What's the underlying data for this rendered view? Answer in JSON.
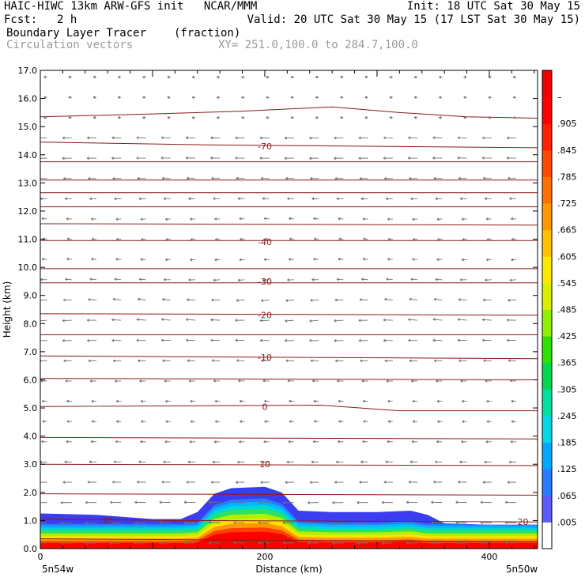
{
  "header": {
    "line1_left": "HAIC-HIWC 13km ARW-GFS init   NCAR/MMM",
    "line1_right": "Init: 18 UTC Sat 30 May 15",
    "fcst_label": "Fcst:",
    "fcst_value": "2 h",
    "line2_right": "Valid: 20 UTC Sat 30 May 15 (17 LST Sat 30 May 15)",
    "field_name": "Boundary Layer Tracer",
    "field_units": "(fraction)",
    "overlay_name": "Circulation vectors",
    "cross_section": "XY= 251.0,100.0 to 284.7,100.0"
  },
  "colors": {
    "contour": "#8b1a1a",
    "vector": "#707070",
    "background": "#ffffff"
  },
  "chart_data": {
    "type": "heatmap",
    "xlabel": "Distance (km)",
    "ylabel": "Height (km)",
    "xlim": [
      0,
      443
    ],
    "ylim": [
      0,
      17
    ],
    "x_ticks": [
      "0",
      "200",
      "400"
    ],
    "x_tick_values": [
      0,
      200,
      400
    ],
    "y_ticks": [
      "0.0",
      "1.0",
      "2.0",
      "3.0",
      "4.0",
      "5.0",
      "6.0",
      "7.0",
      "8.0",
      "9.0",
      "10.0",
      "11.0",
      "12.0",
      "13.0",
      "14.0",
      "15.0",
      "16.0",
      "17.0"
    ],
    "x_endpoints": {
      "left": "5n54w",
      "right": "5n50w"
    },
    "colorbar": {
      "labels": [
        ".005",
        ".065",
        ".125",
        ".185",
        ".245",
        ".305",
        ".365",
        ".425",
        ".485",
        ".545",
        ".605",
        ".665",
        ".725",
        ".785",
        ".845",
        ".905",
        "–"
      ],
      "colors": [
        "#ffffff",
        "#5a5aff",
        "#2a7cff",
        "#00a8ff",
        "#00d8e8",
        "#00e0a0",
        "#00d850",
        "#30e000",
        "#90f000",
        "#d8f000",
        "#ffe800",
        "#ffc000",
        "#ff9800",
        "#ff7000",
        "#ff4800",
        "#ff2000",
        "#ff0000",
        "#ee0000"
      ]
    },
    "tracer_boundary": {
      "x": [
        0,
        50,
        100,
        125,
        140,
        155,
        170,
        200,
        215,
        230,
        260,
        300,
        330,
        345,
        360,
        400,
        443
      ],
      "top": [
        1.25,
        1.2,
        1.05,
        1.05,
        1.3,
        1.95,
        2.15,
        2.2,
        2.0,
        1.35,
        1.3,
        1.3,
        1.35,
        1.2,
        0.9,
        0.85,
        0.85
      ]
    },
    "temperature_contours": {
      "labels": [
        {
          "text": "20",
          "value": 20,
          "x": 60,
          "y": 1.0
        },
        {
          "text": "20",
          "value": 20,
          "x": 430,
          "y": 0.95
        },
        {
          "text": "10",
          "value": 10,
          "x": 200,
          "y": 3.0
        },
        {
          "text": "0",
          "value": 0,
          "x": 200,
          "y": 5.05
        },
        {
          "text": "-10",
          "value": -10,
          "x": 200,
          "y": 6.8
        },
        {
          "text": "-20",
          "value": -20,
          "x": 200,
          "y": 8.3
        },
        {
          "text": "-30",
          "value": -30,
          "x": 200,
          "y": 9.5
        },
        {
          "text": "-40",
          "value": -40,
          "x": 200,
          "y": 10.9
        },
        {
          "text": "-70",
          "value": -70,
          "x": 200,
          "y": 14.3
        }
      ]
    }
  }
}
